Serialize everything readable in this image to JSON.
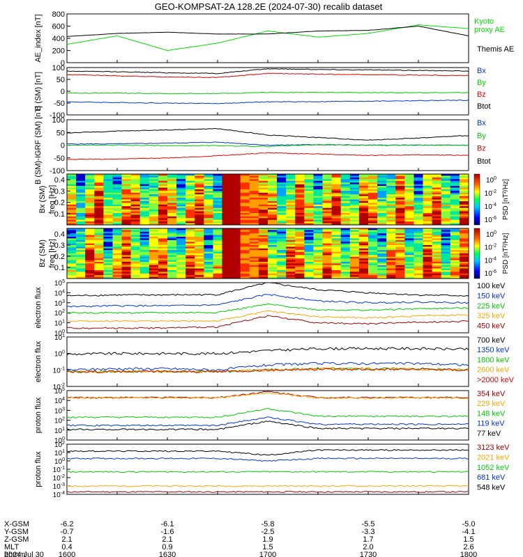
{
  "title": "GEO-KOMPSAT-2A 128.2E (2024-07-30) recalib dataset",
  "colors": {
    "black": "#000000",
    "red": "#e00000",
    "green": "#00cc00",
    "blue": "#0030e0",
    "orange": "#ffa500",
    "darkred": "#a00000",
    "kyoto": "#00dd00"
  },
  "chart_data": [
    {
      "type": "line",
      "ylabel": "AE_index [nT]",
      "ylim": [
        0,
        800
      ],
      "yticks": [
        "0",
        "200",
        "400",
        "600",
        "800"
      ],
      "x": [
        "1600",
        "1615",
        "1630",
        "1645",
        "1700",
        "1715",
        "1730",
        "1745",
        "1800"
      ],
      "series": [
        {
          "name": "Kyoto proxy AE",
          "color": "#00dd00",
          "values": [
            300,
            440,
            200,
            320,
            520,
            420,
            480,
            620,
            560
          ]
        },
        {
          "name": "Themis AE",
          "color": "#000000",
          "values": [
            430,
            480,
            500,
            470,
            470,
            520,
            530,
            600,
            440
          ]
        }
      ]
    },
    {
      "type": "line",
      "ylabel": "B (SM) [nT]",
      "ylim": [
        -100,
        100
      ],
      "yticks": [
        "-100",
        "-50",
        "0",
        "50",
        "100"
      ],
      "series": [
        {
          "name": "Bx",
          "color": "#0030e0",
          "values": [
            -45,
            -48,
            -50,
            -52,
            -45,
            -44,
            -42,
            -40,
            -38
          ]
        },
        {
          "name": "By",
          "color": "#00cc00",
          "values": [
            -8,
            -8,
            -10,
            -10,
            -5,
            -5,
            -6,
            -6,
            -6
          ]
        },
        {
          "name": "Bz",
          "color": "#e00000",
          "values": [
            70,
            65,
            60,
            58,
            75,
            72,
            70,
            68,
            66
          ]
        },
        {
          "name": "Btot",
          "color": "#000000",
          "values": [
            85,
            82,
            78,
            75,
            95,
            92,
            90,
            88,
            85
          ]
        }
      ]
    },
    {
      "type": "line",
      "ylabel": "B (SM)-IGRF (SM) [nT]",
      "ylim": [
        -100,
        100
      ],
      "yticks": [
        "-100",
        "-50",
        "0",
        "50",
        "100"
      ],
      "series": [
        {
          "name": "Bx",
          "color": "#0030e0",
          "values": [
            5,
            5,
            8,
            12,
            0,
            2,
            0,
            0,
            0
          ]
        },
        {
          "name": "By",
          "color": "#00cc00",
          "values": [
            0,
            0,
            -2,
            -2,
            -5,
            2,
            0,
            0,
            0
          ]
        },
        {
          "name": "Bz",
          "color": "#e00000",
          "values": [
            -55,
            -55,
            -50,
            -42,
            -30,
            -35,
            -40,
            -38,
            -40
          ]
        },
        {
          "name": "Btot",
          "color": "#000000",
          "values": [
            48,
            55,
            60,
            65,
            40,
            30,
            20,
            28,
            38
          ]
        }
      ]
    },
    {
      "type": "heatmap",
      "ylabel": "Bx (SM) freq [Hz]",
      "yticks": [
        "0.1",
        "0.2",
        "0.3",
        "0.4"
      ],
      "colorbar_label": "PSD [nT²/Hz]",
      "colorbar_ticks": [
        "10^0",
        "10^-2",
        "10^-4",
        "10^-6"
      ]
    },
    {
      "type": "heatmap",
      "ylabel": "Bz (SM) freq [Hz]",
      "yticks": [
        "0.1",
        "0.2",
        "0.3",
        "0.4"
      ],
      "colorbar_label": "PSD [nT²/Hz]",
      "colorbar_ticks": [
        "10^0",
        "10^-2",
        "10^-4",
        "10^-6"
      ]
    },
    {
      "type": "line",
      "ylabel": "electron flux",
      "yscale": "log",
      "yticks": [
        "10^0",
        "10^1",
        "10^2",
        "10^3",
        "10^4",
        "10^5"
      ],
      "series": [
        {
          "name": "100 keV",
          "color": "#000000",
          "values": [
            5000,
            6000,
            6000,
            6500,
            100000,
            20000,
            10000,
            6000,
            5000
          ]
        },
        {
          "name": "150 keV",
          "color": "#0030e0",
          "values": [
            400,
            500,
            500,
            600,
            7000,
            1500,
            1000,
            1200,
            1000
          ]
        },
        {
          "name": "225 keV",
          "color": "#00cc00",
          "values": [
            100,
            100,
            100,
            110,
            700,
            200,
            180,
            250,
            300
          ]
        },
        {
          "name": "325 keV",
          "color": "#ffa500",
          "values": [
            15,
            15,
            15,
            15,
            150,
            40,
            30,
            50,
            60
          ]
        },
        {
          "name": "450 keV",
          "color": "#a00000",
          "values": [
            3,
            3,
            3,
            4,
            50,
            10,
            8,
            12,
            14
          ]
        }
      ]
    },
    {
      "type": "line",
      "ylabel": "electron flux",
      "yscale": "log",
      "yticks": [
        "10^-2",
        "10^-1",
        "10^0",
        "10^1"
      ],
      "series": [
        {
          "name": "700 keV",
          "color": "#000000",
          "values": [
            0.9,
            1,
            1,
            1,
            1.5,
            2,
            2,
            2,
            1.8
          ]
        },
        {
          "name": "1350 keV",
          "color": "#0030e0",
          "values": [
            0.1,
            0.12,
            0.12,
            0.1,
            0.2,
            0.25,
            0.25,
            0.25,
            0.2
          ]
        },
        {
          "name": "1800 keV",
          "color": "#00cc00",
          "values": [
            0.08,
            0.08,
            0.08,
            0.08,
            0.1,
            0.12,
            0.12,
            0.12,
            0.1
          ]
        },
        {
          "name": "2600 keV",
          "color": "#ffa500",
          "values": [
            0.08,
            0.08,
            0.08,
            0.08,
            0.1,
            0.12,
            0.12,
            0.11,
            0.1
          ]
        },
        {
          "name": ">2000 keV",
          "color": "#e00000",
          "values": [
            0.08,
            0.08,
            0.08,
            0.08,
            0.1,
            0.11,
            0.11,
            0.11,
            0.1
          ]
        }
      ]
    },
    {
      "type": "line",
      "ylabel": "proton flux",
      "yscale": "log",
      "yticks": [
        "10^0",
        "10^1",
        "10^2",
        "10^3",
        "10^4",
        "10^5"
      ],
      "series": [
        {
          "name": "354 keV",
          "color": "#a00000",
          "values": [
            20000,
            20000,
            20000,
            20000,
            80000,
            20000,
            20000,
            20000,
            20000
          ]
        },
        {
          "name": "229 keV",
          "color": "#ffa500",
          "values": [
            18000,
            18000,
            18000,
            18000,
            60000,
            18000,
            18000,
            18000,
            18000
          ]
        },
        {
          "name": "148 keV",
          "color": "#00cc00",
          "values": [
            200,
            200,
            200,
            200,
            1500,
            250,
            250,
            250,
            250
          ]
        },
        {
          "name": "119 keV",
          "color": "#0030e0",
          "values": [
            30,
            30,
            30,
            30,
            200,
            40,
            40,
            40,
            40
          ]
        },
        {
          "name": "77 keV",
          "color": "#000000",
          "values": [
            12,
            12,
            12,
            12,
            80,
            15,
            15,
            15,
            15
          ]
        }
      ]
    },
    {
      "type": "line",
      "ylabel": "proton flux",
      "yscale": "log",
      "yticks": [
        "10^-4",
        "10^-3",
        "10^-2",
        "10^-1",
        "10^0",
        "10^1",
        "10^2"
      ],
      "series": [
        {
          "name": "3123 keV",
          "color": "#a00000",
          "values": [
            0.0002,
            0.0002,
            0.0002,
            0.0002,
            0.0002,
            0.0002,
            0.0002,
            0.0002,
            0.0002
          ]
        },
        {
          "name": "2021 keV",
          "color": "#ffa500",
          "values": [
            0.001,
            0.001,
            0.001,
            0.001,
            0.001,
            0.001,
            0.001,
            0.001,
            0.001
          ]
        },
        {
          "name": "1052 keV",
          "color": "#00cc00",
          "values": [
            0.05,
            0.05,
            0.05,
            0.05,
            0.05,
            0.05,
            0.05,
            0.05,
            0.05
          ]
        },
        {
          "name": "681 keV",
          "color": "#0030e0",
          "values": [
            2,
            2,
            2,
            2,
            1,
            2,
            2,
            2,
            2
          ]
        },
        {
          "name": "548 keV",
          "color": "#000000",
          "values": [
            15,
            15,
            15,
            15,
            5,
            20,
            20,
            20,
            20
          ]
        }
      ]
    }
  ],
  "xaxis": {
    "rows": [
      {
        "label": "X-GSM",
        "values": [
          "-6.2",
          "-6.1",
          "-5.8",
          "-5.5",
          "-5.0"
        ]
      },
      {
        "label": "Y-GSM",
        "values": [
          "-0.7",
          "-1.6",
          "-2.5",
          "-3.3",
          "-4.1"
        ]
      },
      {
        "label": "Z-GSM",
        "values": [
          "2.1",
          "2.1",
          "1.9",
          "1.7",
          "1.5"
        ]
      },
      {
        "label": "MLT",
        "values": [
          "0.4",
          "0.9",
          "1.5",
          "2.0",
          "2.6"
        ]
      },
      {
        "label": "hhmm",
        "values": [
          "1600",
          "1630",
          "1700",
          "1730",
          "1800"
        ]
      }
    ],
    "date": "2024 Jul 30"
  }
}
